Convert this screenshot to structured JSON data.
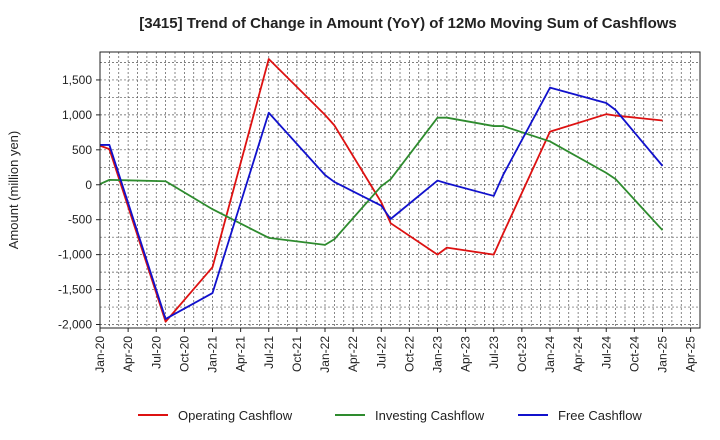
{
  "chart_data": {
    "type": "line",
    "title": "[3415]  Trend of Change in Amount (YoY) of 12Mo Moving Sum of Cashflows",
    "xlabel": "",
    "ylabel": "Amount (million yen)",
    "ylim": [
      -2050,
      1900
    ],
    "yticks": [
      1500,
      1000,
      500,
      0,
      -500,
      -1000,
      -1500,
      -2000
    ],
    "ytick_labels": [
      "1,500",
      "1,000",
      "500",
      "0",
      "-500",
      "-1,000",
      "-1,500",
      "-2,000"
    ],
    "x_start": "Jan-20",
    "x_months_total": 64,
    "xtick_labels": [
      "Jan-20",
      "Apr-20",
      "Jul-20",
      "Oct-20",
      "Jan-21",
      "Apr-21",
      "Jul-21",
      "Oct-21",
      "Jan-22",
      "Apr-22",
      "Jul-22",
      "Oct-22",
      "Jan-23",
      "Apr-23",
      "Jul-23",
      "Oct-23",
      "Jan-24",
      "Apr-24",
      "Jul-24",
      "Oct-24",
      "Jan-25",
      "Apr-25"
    ],
    "x": [
      0,
      1,
      7,
      12,
      18,
      24,
      25,
      30,
      31,
      36,
      37,
      42,
      43,
      48,
      54,
      55,
      60
    ],
    "x_labels": [
      "Jan-20",
      "Feb-20",
      "Aug-20",
      "Jan-21",
      "Jul-21",
      "Jan-22",
      "Feb-22",
      "Jul-22",
      "Aug-22",
      "Jan-23",
      "Feb-23",
      "Jul-23",
      "Aug-23",
      "Jan-24",
      "Jul-24",
      "Aug-24",
      "Jan-25"
    ],
    "series": [
      {
        "name": "Operating Cashflow",
        "color": "#dd1111",
        "values": [
          560,
          510,
          -1960,
          -1180,
          1800,
          1000,
          850,
          -250,
          -550,
          -1000,
          -900,
          -1000,
          -700,
          760,
          1010,
          990,
          920
        ]
      },
      {
        "name": "Investing Cashflow",
        "color": "#2e8b2e",
        "values": [
          10,
          70,
          50,
          -350,
          -760,
          -860,
          -780,
          -20,
          80,
          960,
          960,
          840,
          840,
          620,
          170,
          80,
          -650
        ]
      },
      {
        "name": "Free Cashflow",
        "color": "#1111cc",
        "values": [
          570,
          570,
          -1920,
          -1550,
          1030,
          140,
          40,
          -300,
          -490,
          60,
          20,
          -160,
          140,
          1390,
          1170,
          1070,
          270
        ]
      }
    ],
    "legend": [
      "Operating Cashflow",
      "Investing Cashflow",
      "Free Cashflow"
    ],
    "legend_position": "bottom",
    "grid": true
  }
}
